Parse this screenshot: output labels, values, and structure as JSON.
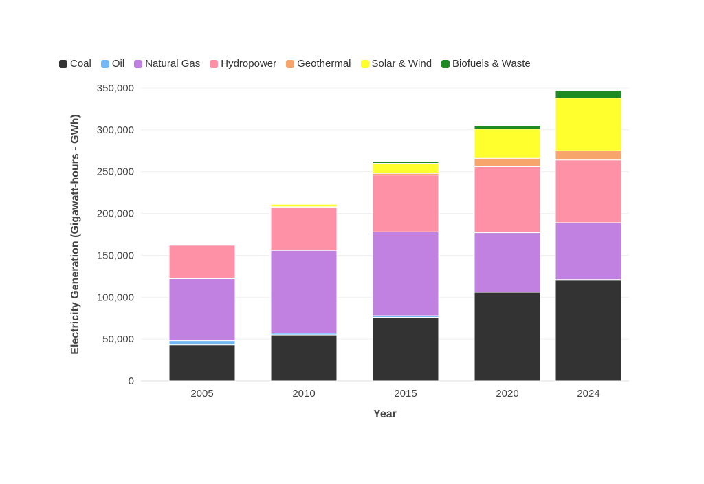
{
  "chart_data": {
    "type": "bar",
    "stacked": true,
    "title": "",
    "xlabel": "Year",
    "ylabel": "Electricity Generation (Gigawatt-hours - GWh)",
    "ylim": [
      0,
      350000
    ],
    "yticks": [
      0,
      50000,
      100000,
      150000,
      200000,
      250000,
      300000,
      350000
    ],
    "ytick_labels": [
      "0",
      "50,000",
      "100,000",
      "150,000",
      "200,000",
      "250,000",
      "300,000",
      "350,000"
    ],
    "categories": [
      "2005",
      "2010",
      "2015",
      "2020",
      "2024"
    ],
    "x": [
      2005,
      2010,
      2015,
      2020,
      2024
    ],
    "grid": true,
    "legend_position": "top-left",
    "series": [
      {
        "name": "Coal",
        "color": "#333333",
        "values": [
          43000,
          55000,
          76000,
          106000,
          121000
        ]
      },
      {
        "name": "Oil",
        "color": "#74b9f5",
        "values": [
          5000,
          2000,
          2000,
          0,
          0
        ]
      },
      {
        "name": "Natural Gas",
        "color": "#c181e0",
        "values": [
          74000,
          99000,
          100000,
          71000,
          68000
        ]
      },
      {
        "name": "Hydropower",
        "color": "#ff91a6",
        "values": [
          40000,
          51000,
          68000,
          79000,
          75000
        ]
      },
      {
        "name": "Geothermal",
        "color": "#f7a56b",
        "values": [
          0,
          1000,
          2000,
          10000,
          11000
        ]
      },
      {
        "name": "Solar & Wind",
        "color": "#ffff2e",
        "values": [
          0,
          3000,
          12000,
          35000,
          63000
        ]
      },
      {
        "name": "Biofuels & Waste",
        "color": "#1d8a22",
        "values": [
          0,
          0,
          2000,
          4000,
          9000
        ]
      }
    ]
  }
}
